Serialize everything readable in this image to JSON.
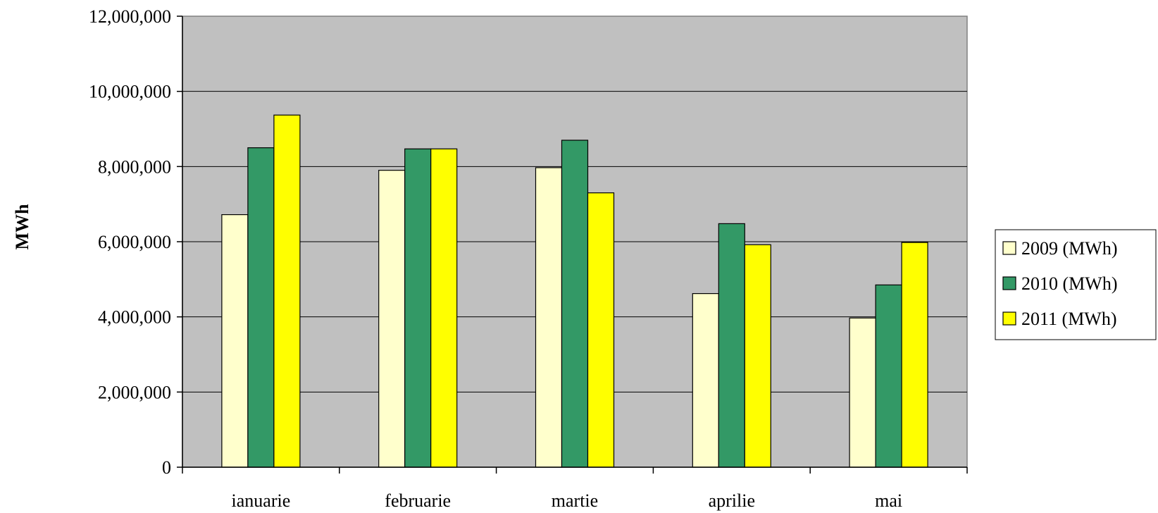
{
  "chart_data": {
    "type": "bar",
    "title": "",
    "xlabel": "",
    "ylabel": "MWh",
    "categories": [
      "ianuarie",
      "februarie",
      "martie",
      "aprilie",
      "mai"
    ],
    "series": [
      {
        "name": "2009 (MWh)",
        "color": "#ffffcc",
        "values": [
          6720000,
          7900000,
          7970000,
          4620000,
          3970000
        ]
      },
      {
        "name": "2010 (MWh)",
        "color": "#339966",
        "values": [
          8500000,
          8470000,
          8700000,
          6480000,
          4850000
        ]
      },
      {
        "name": "2011 (MWh)",
        "color": "#ffff00",
        "values": [
          9370000,
          8470000,
          7300000,
          5920000,
          5980000
        ]
      }
    ],
    "ylim": [
      0,
      12000000
    ],
    "yticks": [
      0,
      2000000,
      4000000,
      6000000,
      8000000,
      10000000,
      12000000
    ],
    "ytick_labels": [
      "0",
      "2,000,000",
      "4,000,000",
      "6,000,000",
      "8,000,000",
      "10,000,000",
      "12,000,000"
    ],
    "grid": true,
    "plot_background": "#c0c0c0",
    "legend": "right"
  }
}
